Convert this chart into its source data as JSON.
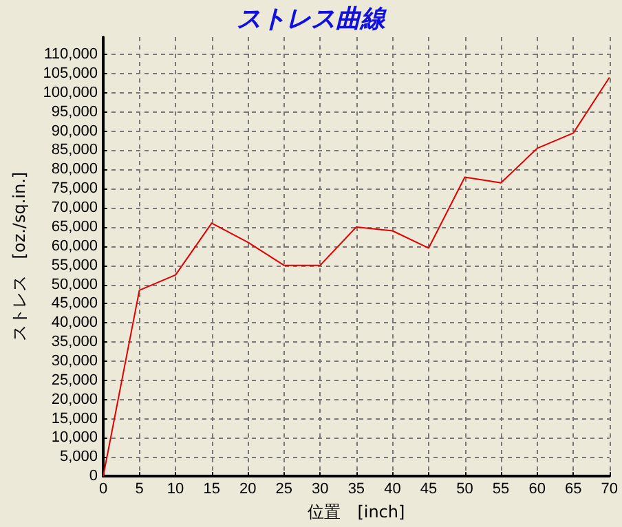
{
  "chart_data": {
    "type": "line",
    "title": "ストレス曲線",
    "xlabel": "位置　[inch]",
    "ylabel": "ストレス　[oz./sq.in.]",
    "x": [
      0,
      5,
      10,
      15,
      20,
      25,
      30,
      35,
      40,
      45,
      50,
      55,
      60,
      65,
      70
    ],
    "series": [
      {
        "color": "#e00000",
        "values": [
          0,
          48500,
          52500,
          66000,
          61000,
          55000,
          55000,
          65000,
          64000,
          59500,
          78000,
          76500,
          85500,
          89500,
          104000
        ]
      }
    ],
    "xlim": [
      0,
      70
    ],
    "xticks": [
      0,
      5,
      10,
      15,
      20,
      25,
      30,
      35,
      40,
      45,
      50,
      55,
      60,
      65,
      70
    ],
    "ylim": [
      0,
      114500
    ],
    "yticks": [
      0,
      {
        "value": 5000,
        "label": "5,000"
      },
      {
        "value": 10000,
        "label": "10,000"
      },
      {
        "value": 15000,
        "label": "15,000"
      },
      {
        "value": 20000,
        "label": "20,000"
      },
      {
        "value": 25000,
        "label": "25,000"
      },
      {
        "value": 30000,
        "label": "30,000"
      },
      {
        "value": 35000,
        "label": "35,000"
      },
      {
        "value": 40000,
        "label": "40,000"
      },
      {
        "value": 45000,
        "label": "45,000"
      },
      {
        "value": 50000,
        "label": "50,000"
      },
      {
        "value": 55000,
        "label": "55,000"
      },
      {
        "value": 60000,
        "label": "60,000"
      },
      {
        "value": 65000,
        "label": "65,000"
      },
      {
        "value": 70000,
        "label": "70,000"
      },
      {
        "value": 75000,
        "label": "75,000"
      },
      {
        "value": 80000,
        "label": "80,000"
      },
      {
        "value": 85000,
        "label": "85,000"
      },
      {
        "value": 90000,
        "label": "90,000"
      },
      {
        "value": 95000,
        "label": "95,000"
      },
      {
        "value": 100000,
        "label": "100,000"
      },
      {
        "value": 105000,
        "label": "105,000"
      },
      {
        "value": 110000,
        "label": "110,000"
      }
    ],
    "grid": true,
    "marker": "none",
    "line_style": "solid"
  }
}
